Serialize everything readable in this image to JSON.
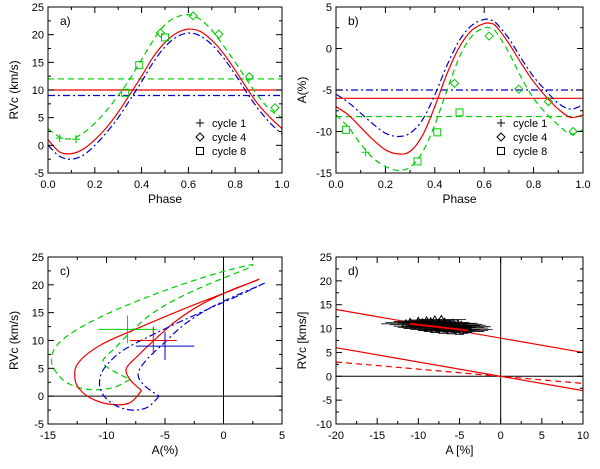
{
  "chart_data": [
    {
      "id": "a",
      "type": "line",
      "panel_label": "a)",
      "xlabel": "Phase",
      "ylabel": "RVc  (km/s)",
      "xlim": [
        0,
        1
      ],
      "ylim": [
        -5,
        25
      ],
      "xticks": [
        "0.0",
        "0.2",
        "0.4",
        "0.6",
        "0.8",
        "1.0"
      ],
      "yticks": [
        "-5",
        "0",
        "5",
        "10",
        "15",
        "20",
        "25"
      ],
      "legend": [
        {
          "marker": "plus",
          "label": "cycle  1"
        },
        {
          "marker": "diamond",
          "label": "cycle  4"
        },
        {
          "marker": "square",
          "label": "cycle  8"
        }
      ],
      "series": [
        {
          "name": "mean-cycle-4",
          "style": "dashed",
          "color": "#00cc00",
          "hline": 12
        },
        {
          "name": "mean-cycle-1",
          "style": "solid",
          "color": "#ee0000",
          "hline": 10
        },
        {
          "name": "mean-cycle-8",
          "style": "dashdot",
          "color": "#0000cc",
          "hline": 9
        },
        {
          "name": "fit-cycle-4",
          "style": "dashed",
          "color": "#00cc00",
          "x": [
            0,
            0.05,
            0.1,
            0.15,
            0.2,
            0.25,
            0.3,
            0.35,
            0.4,
            0.45,
            0.5,
            0.55,
            0.6,
            0.65,
            0.7,
            0.75,
            0.8,
            0.85,
            0.9,
            0.95,
            1.0
          ],
          "y": [
            3,
            1.5,
            1.2,
            2.2,
            4,
            6.3,
            9,
            12,
            15.5,
            19,
            21.8,
            23.2,
            23.6,
            22.8,
            20.8,
            18,
            15,
            11.8,
            8.8,
            6.4,
            5
          ]
        },
        {
          "name": "fit-cycle-1",
          "style": "solid",
          "color": "#ee0000",
          "x": [
            0,
            0.05,
            0.1,
            0.15,
            0.2,
            0.25,
            0.3,
            0.35,
            0.4,
            0.45,
            0.5,
            0.55,
            0.6,
            0.65,
            0.7,
            0.75,
            0.8,
            0.85,
            0.9,
            0.95,
            1.0
          ],
          "y": [
            1,
            -1.2,
            -1.5,
            -0.7,
            1,
            3.2,
            6,
            9.2,
            12.5,
            16,
            18.6,
            20.3,
            21,
            20.6,
            19,
            16.6,
            13.6,
            10.3,
            7.3,
            5,
            3
          ]
        },
        {
          "name": "fit-cycle-8",
          "style": "dashdot",
          "color": "#0000cc",
          "x": [
            0,
            0.05,
            0.1,
            0.15,
            0.2,
            0.25,
            0.3,
            0.35,
            0.4,
            0.45,
            0.5,
            0.55,
            0.6,
            0.65,
            0.7,
            0.75,
            0.8,
            0.85,
            0.9,
            0.95,
            1.0
          ],
          "y": [
            0,
            -2,
            -2.5,
            -1.8,
            0,
            2.3,
            5,
            8.2,
            11.5,
            15,
            17.8,
            19.6,
            20.3,
            19.8,
            18.2,
            15.8,
            12.8,
            9.5,
            6.5,
            4,
            2
          ]
        },
        {
          "name": "points-cycle-1",
          "marker": "plus",
          "color": "#00cc00",
          "x": [
            0.05,
            0.12
          ],
          "y": [
            1.3,
            1.1
          ]
        },
        {
          "name": "points-cycle-4",
          "marker": "diamond",
          "color": "#00cc00",
          "x": [
            0.48,
            0.62,
            0.73,
            0.86,
            0.97
          ],
          "y": [
            20.3,
            23.4,
            20.1,
            12.4,
            6.8
          ]
        },
        {
          "name": "points-cycle-8",
          "marker": "square",
          "color": "#00cc00",
          "x": [
            0.33,
            0.39,
            0.5
          ],
          "y": [
            9.5,
            14.5,
            19.5
          ]
        }
      ]
    },
    {
      "id": "b",
      "type": "line",
      "panel_label": "b)",
      "xlabel": "Phase",
      "ylabel": "A(%)",
      "xlim": [
        0,
        1
      ],
      "ylim": [
        -15,
        5
      ],
      "xticks": [
        "0.0",
        "0.2",
        "0.4",
        "0.6",
        "0.8",
        "1.0"
      ],
      "yticks": [
        "-15",
        "-10",
        "-5",
        "0",
        "5"
      ],
      "legend": [
        {
          "marker": "plus",
          "label": "cycle  1"
        },
        {
          "marker": "diamond",
          "label": "cycle  4"
        },
        {
          "marker": "square",
          "label": "cycle  8"
        }
      ],
      "series": [
        {
          "name": "mean-cycle-8",
          "style": "dashdot",
          "color": "#0000cc",
          "hline": -5
        },
        {
          "name": "mean-cycle-1",
          "style": "solid",
          "color": "#ee0000",
          "hline": -6
        },
        {
          "name": "mean-cycle-4",
          "style": "dashed",
          "color": "#00cc00",
          "hline": -8.2
        },
        {
          "name": "fit-cycle-4",
          "style": "dashed",
          "color": "#00cc00",
          "x": [
            0,
            0.05,
            0.1,
            0.15,
            0.2,
            0.25,
            0.3,
            0.35,
            0.4,
            0.45,
            0.5,
            0.55,
            0.6,
            0.63,
            0.65,
            0.7,
            0.75,
            0.8,
            0.85,
            0.9,
            0.95,
            1.0
          ],
          "y": [
            -8,
            -9.5,
            -11.5,
            -13.2,
            -14.2,
            -14.7,
            -14.3,
            -12.5,
            -9.2,
            -5,
            -1,
            1.5,
            2.5,
            2.4,
            1.9,
            -0.5,
            -3.5,
            -6,
            -7.8,
            -9.2,
            -10.3,
            -9.8
          ]
        },
        {
          "name": "fit-cycle-1",
          "style": "solid",
          "color": "#ee0000",
          "x": [
            0,
            0.05,
            0.1,
            0.15,
            0.2,
            0.25,
            0.3,
            0.35,
            0.4,
            0.45,
            0.5,
            0.55,
            0.6,
            0.63,
            0.65,
            0.7,
            0.75,
            0.8,
            0.85,
            0.9,
            0.95,
            1.0
          ],
          "y": [
            -7,
            -8,
            -9.5,
            -11,
            -12.2,
            -12.7,
            -12.4,
            -10.5,
            -7,
            -3,
            0.2,
            2.2,
            3,
            3,
            2.6,
            0.6,
            -1.8,
            -4,
            -5.8,
            -7.3,
            -8.3,
            -8
          ]
        },
        {
          "name": "fit-cycle-8",
          "style": "dashdot",
          "color": "#0000cc",
          "x": [
            0,
            0.05,
            0.1,
            0.15,
            0.2,
            0.25,
            0.3,
            0.35,
            0.4,
            0.45,
            0.5,
            0.55,
            0.6,
            0.63,
            0.65,
            0.7,
            0.75,
            0.8,
            0.85,
            0.9,
            0.95,
            1.0
          ],
          "y": [
            -5.5,
            -6.5,
            -7.8,
            -9.1,
            -10.2,
            -10.6,
            -10.2,
            -8.6,
            -5.6,
            -2,
            1,
            2.8,
            3.5,
            3.4,
            3,
            1.2,
            -1.2,
            -3.4,
            -5.1,
            -6.6,
            -7.3,
            -6.8
          ]
        },
        {
          "name": "points-cycle-1",
          "marker": "plus",
          "color": "#00cc00",
          "x": [
            0.12
          ],
          "y": [
            -12.5
          ]
        },
        {
          "name": "points-cycle-4",
          "marker": "diamond",
          "color": "#00cc00",
          "x": [
            0.48,
            0.62,
            0.74,
            0.86,
            0.96
          ],
          "y": [
            -4.2,
            1.5,
            -4.9,
            -6.4,
            -10
          ]
        },
        {
          "name": "points-cycle-8",
          "marker": "square",
          "color": "#00cc00",
          "x": [
            0.04,
            0.33,
            0.41,
            0.5
          ],
          "y": [
            -9.8,
            -13.6,
            -10.1,
            -7.7
          ]
        }
      ]
    },
    {
      "id": "c",
      "type": "line",
      "panel_label": "c)",
      "xlabel": "A(%)",
      "ylabel": "RVc  (km/s)",
      "xlim": [
        -15,
        5
      ],
      "ylim": [
        -5,
        25
      ],
      "xticks": [
        "-15",
        "-10",
        "-5",
        "0",
        "5"
      ],
      "yticks": [
        "-5",
        "0",
        "5",
        "10",
        "15",
        "20",
        "25"
      ],
      "series": [
        {
          "name": "loop-cycle-4",
          "style": "dashed",
          "color": "#00cc00",
          "x": [
            -8,
            -9.5,
            -11.5,
            -13.2,
            -14.2,
            -14.7,
            -14.3,
            -12.5,
            -9.2,
            -5,
            -1,
            1.5,
            2.5,
            1.9,
            -0.5,
            -3.5,
            -6,
            -7.8,
            -9.2,
            -10.3,
            -9.8,
            -8
          ],
          "y": [
            3,
            1.5,
            1.2,
            2.2,
            4,
            6.3,
            9,
            12,
            15.5,
            19,
            21.8,
            23.2,
            23.6,
            22.8,
            20.8,
            18,
            15,
            11.8,
            8.8,
            6.4,
            5,
            3
          ]
        },
        {
          "name": "loop-cycle-1",
          "style": "solid",
          "color": "#ee0000",
          "x": [
            -7,
            -8,
            -9.5,
            -11,
            -12.2,
            -12.7,
            -12.4,
            -10.5,
            -7,
            -3,
            0.2,
            2.2,
            3,
            2.6,
            0.6,
            -1.8,
            -4,
            -5.8,
            -7.3,
            -8.3,
            -8,
            -7
          ],
          "y": [
            1,
            -1.2,
            -1.5,
            -0.7,
            1,
            3.2,
            6,
            9.2,
            12.5,
            16,
            18.6,
            20.3,
            21,
            20.6,
            19,
            16.6,
            13.6,
            10.3,
            7.3,
            5,
            3,
            1
          ]
        },
        {
          "name": "loop-cycle-8",
          "style": "dashdot",
          "color": "#0000cc",
          "x": [
            -5.5,
            -6.5,
            -7.8,
            -9.1,
            -10.2,
            -10.6,
            -10.2,
            -8.6,
            -5.6,
            -2,
            1,
            2.8,
            3.5,
            3,
            1.2,
            -1.2,
            -3.4,
            -5.1,
            -6.6,
            -7.3,
            -6.8,
            -5.5
          ],
          "y": [
            0,
            -2,
            -2.5,
            -1.8,
            0,
            2.3,
            5,
            8.2,
            11.5,
            15,
            17.8,
            19.6,
            20.3,
            19.8,
            18.2,
            15.8,
            12.8,
            9.5,
            6.5,
            4,
            2,
            0
          ]
        },
        {
          "name": "mean-cross-cycle-4",
          "marker": "cross",
          "color": "#00cc00",
          "x": [
            -8.2
          ],
          "y": [
            12
          ],
          "dx": 2.5,
          "dy": 2.5
        },
        {
          "name": "mean-cross-cycle-1",
          "marker": "cross",
          "color": "#ee0000",
          "x": [
            -6
          ],
          "y": [
            10
          ],
          "dx": 2,
          "dy": 2.5
        },
        {
          "name": "mean-cross-cycle-8",
          "marker": "cross",
          "color": "#0000cc",
          "x": [
            -5
          ],
          "y": [
            9
          ],
          "dx": 2.5,
          "dy": 2.5
        }
      ]
    },
    {
      "id": "d",
      "type": "scatter",
      "panel_label": "d)",
      "xlabel": "A [%]",
      "ylabel": "RVc  [kms/]",
      "xlim": [
        -20,
        10
      ],
      "ylim": [
        -10,
        25
      ],
      "xticks": [
        "-20",
        "-15",
        "-10",
        "-5",
        "0",
        "5",
        "10"
      ],
      "yticks": [
        "-10",
        "-5",
        "0",
        "5",
        "10",
        "15",
        "20",
        "25"
      ],
      "lines": [
        {
          "name": "fit-upper",
          "style": "solid",
          "color": "#ee0000",
          "slope": -0.3,
          "intercept": 8
        },
        {
          "name": "fit-lower",
          "style": "solid",
          "color": "#ee0000",
          "slope": -0.3,
          "intercept": 0
        },
        {
          "name": "fit-dashed",
          "style": "dashed",
          "color": "#ee0000",
          "slope": -0.15,
          "intercept": 0
        },
        {
          "name": "fit-data",
          "style": "solid",
          "color": "#ee0000",
          "slope": -0.2,
          "intercept": 8.8,
          "xrange": [
            -11,
            -4
          ]
        }
      ],
      "points": {
        "marker": "triangle",
        "color": "#000000",
        "xerr": 3,
        "x": [
          -11.5,
          -11,
          -10.5,
          -10,
          -10,
          -9.5,
          -9.5,
          -9,
          -9,
          -8.8,
          -8.5,
          -8.5,
          -8.2,
          -8,
          -8,
          -7.8,
          -7.5,
          -7.5,
          -7.2,
          -7,
          -7,
          -6.8,
          -6.5,
          -6.5,
          -6.2,
          -6,
          -6,
          -5.8,
          -5.5,
          -5.5,
          -5.2,
          -5,
          -5,
          -4.8,
          -4.5,
          -4.5,
          -4.2,
          -4
        ],
        "y": [
          11,
          11.3,
          10.8,
          11.5,
          10.5,
          11.2,
          10.2,
          11.6,
          10.8,
          10,
          11.4,
          10.4,
          11,
          11.8,
          9.8,
          10.6,
          11.2,
          10.2,
          11.9,
          10.7,
          9.6,
          11.3,
          10.5,
          9.9,
          11,
          10.3,
          9.5,
          11.1,
          10.6,
          9.8,
          10.9,
          10.2,
          9.4,
          10.7,
          10.1,
          9.6,
          10.4,
          9.8
        ]
      }
    }
  ]
}
